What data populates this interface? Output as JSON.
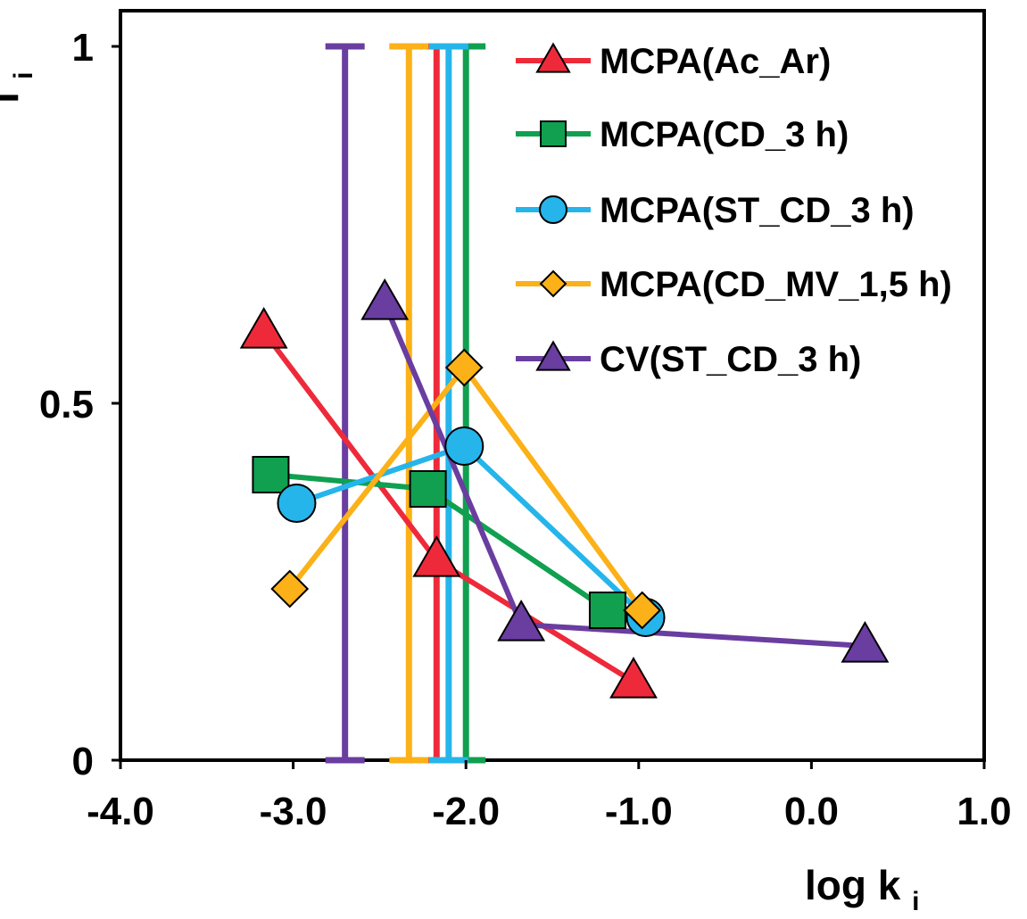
{
  "chart_data": {
    "type": "line",
    "title": "",
    "xlabel": "log k",
    "xlabel_sub": "i",
    "ylabel": "f",
    "ylabel_sub": "i",
    "xlim": [
      -4.0,
      1.0
    ],
    "ylim": [
      0,
      1
    ],
    "x_ticks": [
      -4.0,
      -3.0,
      -2.0,
      -1.0,
      0.0,
      1.0
    ],
    "x_tick_labels": [
      "-4.0",
      "-3.0",
      "-2.0",
      "-1.0",
      "0.0",
      "1.0"
    ],
    "y_ticks": [
      0,
      0.5,
      1
    ],
    "y_tick_labels": [
      "0",
      "0.5",
      "1"
    ],
    "grid": false,
    "legend_position": "top-right",
    "series": [
      {
        "name": "MCPA(Ac_Ar)",
        "color": "#ee2a3a",
        "marker": "triangle",
        "x": [
          -3.17,
          -2.17,
          -1.03
        ],
        "y": [
          0.6,
          0.28,
          0.11
        ],
        "vline_x": -2.17
      },
      {
        "name": "MCPA(CD_3 h)",
        "color": "#10a050",
        "marker": "square",
        "x": [
          -3.13,
          -2.22,
          -1.18
        ],
        "y": [
          0.4,
          0.38,
          0.21
        ],
        "vline_x": -2.0
      },
      {
        "name": "MCPA(ST_CD_3 h)",
        "color": "#25b5ea",
        "marker": "circle",
        "x": [
          -2.98,
          -2.01,
          -0.96
        ],
        "y": [
          0.36,
          0.44,
          0.2
        ],
        "vline_x": -2.1
      },
      {
        "name": "MCPA(CD_MV_1,5 h)",
        "color": "#fbb117",
        "marker": "diamond",
        "x": [
          -3.02,
          -2.01,
          -0.98
        ],
        "y": [
          0.24,
          0.55,
          0.21
        ],
        "vline_x": -2.33
      },
      {
        "name": "CV(ST_CD_3 h)",
        "color": "#6a3da0",
        "marker": "triangle",
        "x": [
          -2.47,
          -1.68,
          0.31
        ],
        "y": [
          0.64,
          0.19,
          0.16
        ],
        "vline_x": -2.7
      }
    ]
  }
}
